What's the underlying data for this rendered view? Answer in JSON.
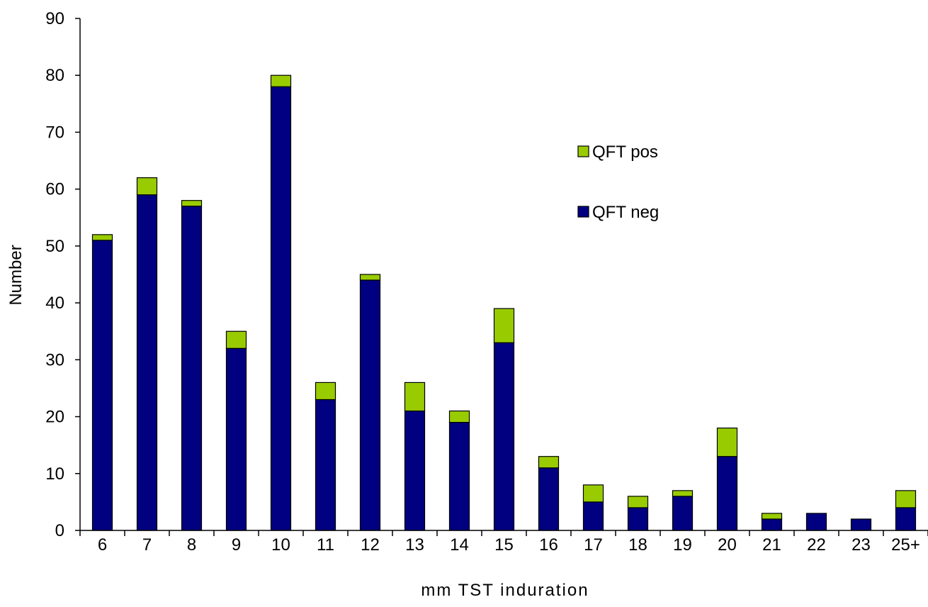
{
  "chart_data": {
    "type": "bar",
    "stacked": true,
    "title": "",
    "xlabel": "mm TST induration",
    "ylabel": "Number",
    "ylim": [
      0,
      90
    ],
    "yticks": [
      0,
      10,
      20,
      30,
      40,
      50,
      60,
      70,
      80,
      90
    ],
    "grid": false,
    "legend_position": "right-center",
    "categories": [
      "6",
      "7",
      "8",
      "9",
      "10",
      "11",
      "12",
      "13",
      "14",
      "15",
      "16",
      "17",
      "18",
      "19",
      "20",
      "21",
      "22",
      "23",
      "25+"
    ],
    "series": [
      {
        "name": "QFT neg",
        "color": "#000080",
        "values": [
          51,
          59,
          57,
          32,
          78,
          23,
          44,
          21,
          19,
          33,
          11,
          5,
          4,
          6,
          13,
          2,
          3,
          2,
          4
        ]
      },
      {
        "name": "QFT pos",
        "color": "#99cc00",
        "values": [
          1,
          3,
          1,
          3,
          2,
          3,
          1,
          5,
          2,
          6,
          2,
          3,
          2,
          1,
          5,
          1,
          0,
          0,
          3
        ]
      }
    ],
    "legend_order": [
      "QFT pos",
      "QFT neg"
    ]
  }
}
